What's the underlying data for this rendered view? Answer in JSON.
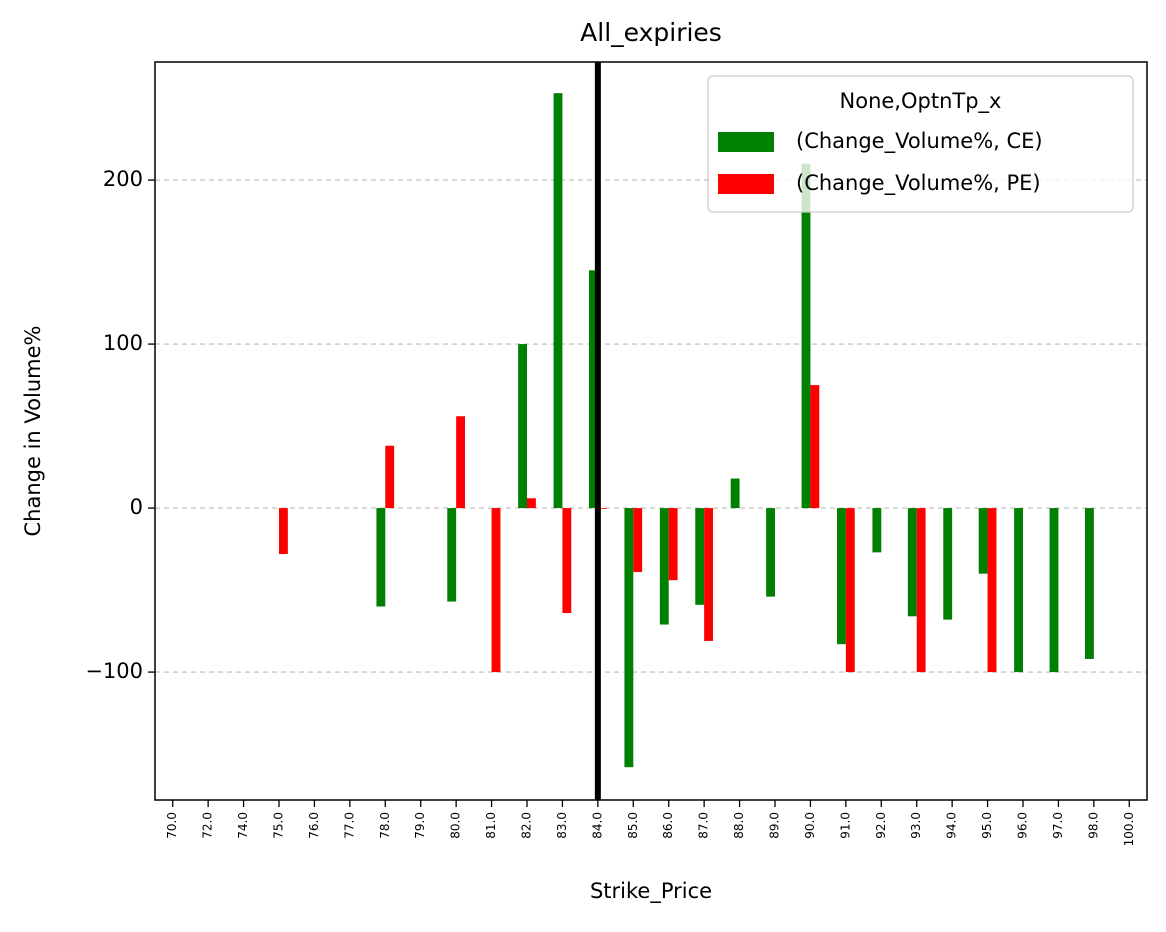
{
  "chart_data": {
    "type": "bar",
    "title": "All_expiries",
    "x_label": "Strike_Price",
    "y_label": "Change in Volume%",
    "categories": [
      "70.0",
      "72.0",
      "74.0",
      "75.0",
      "76.0",
      "77.0",
      "78.0",
      "79.0",
      "80.0",
      "81.0",
      "82.0",
      "83.0",
      "84.0",
      "85.0",
      "86.0",
      "87.0",
      "88.0",
      "89.0",
      "90.0",
      "91.0",
      "92.0",
      "93.0",
      "94.0",
      "95.0",
      "96.0",
      "97.0",
      "98.0",
      "100.0"
    ],
    "series": [
      {
        "name": "(Change_Volume%, CE)",
        "color": "#008000",
        "values": [
          null,
          null,
          null,
          null,
          null,
          null,
          -60,
          null,
          -57,
          null,
          100,
          253,
          145,
          -158,
          -71,
          -59,
          18,
          -54,
          210,
          -83,
          -27,
          -66,
          -68,
          -40,
          -100,
          -100,
          -92,
          null
        ]
      },
      {
        "name": "(Change_Volume%, PE)",
        "color": "#ff0000",
        "values": [
          null,
          null,
          null,
          -28,
          null,
          null,
          38,
          null,
          56,
          -100,
          6,
          -64,
          0,
          -39,
          -44,
          -81,
          null,
          null,
          75,
          -100,
          null,
          -100,
          null,
          -100,
          null,
          null,
          null,
          null
        ]
      }
    ],
    "legend_title": "None,OptnTp_x",
    "legend": "upper right",
    "vline": "84.0",
    "ylim": [
      -178,
      272
    ],
    "yticks": [
      {
        "value": -100,
        "label": "−100"
      },
      0,
      100,
      200
    ],
    "grid": true
  }
}
